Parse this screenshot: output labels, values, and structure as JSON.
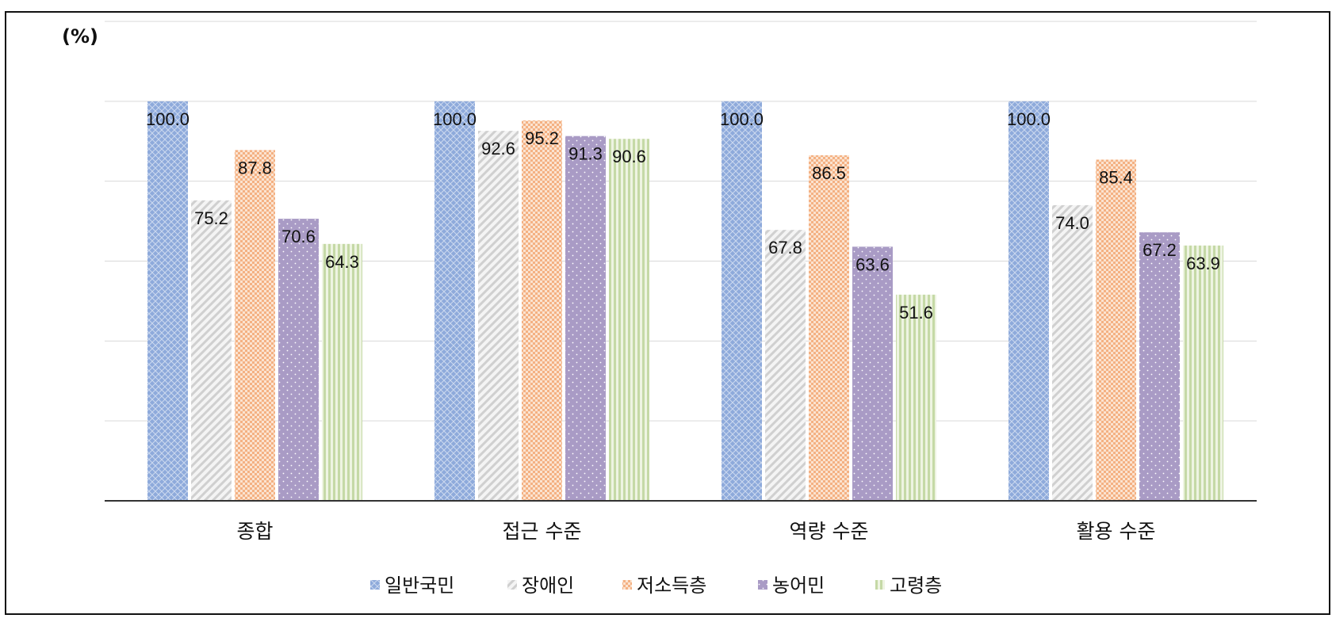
{
  "chart_data": {
    "type": "bar",
    "unit_label": "(%)",
    "categories": [
      "종합",
      "접근 수준",
      "역량 수준",
      "활용 수준"
    ],
    "series": [
      {
        "name": "일반국민",
        "values": [
          100.0,
          100.0,
          100.0,
          100.0
        ],
        "color": "#8eaadb",
        "pattern": "diamond-cross"
      },
      {
        "name": "장애인",
        "values": [
          75.2,
          92.6,
          67.8,
          74.0
        ],
        "color": "#d0d0d0",
        "pattern": "diagonal"
      },
      {
        "name": "저소득층",
        "values": [
          87.8,
          95.2,
          86.5,
          85.4
        ],
        "color": "#f4b183",
        "pattern": "checker"
      },
      {
        "name": "농어민",
        "values": [
          70.6,
          91.3,
          63.6,
          67.2
        ],
        "color": "#a99bc5",
        "pattern": "dots"
      },
      {
        "name": "고령층",
        "values": [
          64.3,
          90.6,
          51.6,
          63.9
        ],
        "color": "#c5d9a6",
        "pattern": "vertical"
      }
    ],
    "value_labels": [
      [
        "100.0",
        "100.0",
        "100.0",
        "100.0"
      ],
      [
        "75.2",
        "92.6",
        "67.8",
        "74.0"
      ],
      [
        "87.8",
        "95.2",
        "86.5",
        "85.4"
      ],
      [
        "70.6",
        "91.3",
        "63.6",
        "67.2"
      ],
      [
        "64.3",
        "90.6",
        "51.6",
        "63.9"
      ]
    ],
    "ylim": [
      0,
      120
    ],
    "gridlines": [
      20,
      40,
      60,
      80,
      100,
      120
    ],
    "grid": true,
    "y_tick_labels_shown": false,
    "legend_position": "bottom"
  }
}
